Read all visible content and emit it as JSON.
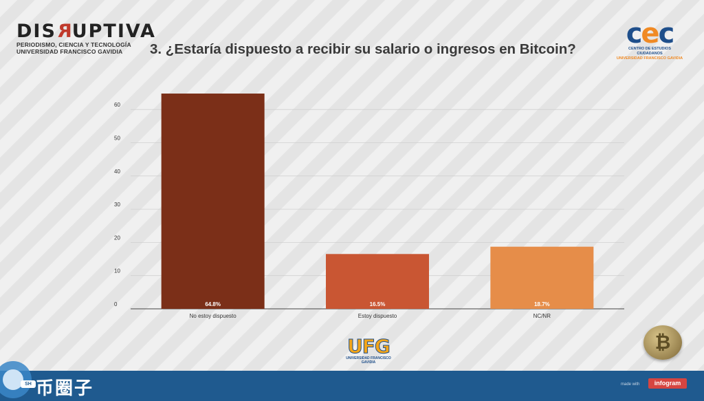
{
  "header": {
    "logo_left": {
      "word_a": "DIS",
      "word_r": "R",
      "word_b": "UPTIVA",
      "line1": "PERIODISMO, CIENCIA Y TECNOLOGÍA",
      "line2": "UNIVERSIDAD FRANCISCO GAVIDIA"
    },
    "title": "3. ¿Estaría dispuesto a recibir su salario o ingresos en Bitcoin?",
    "logo_right": {
      "mark_a": "c",
      "mark_b": "e",
      "mark_c": "c",
      "line1": "CENTRO DE ESTUDIOS CIUDADANOS",
      "line2": "UNIVERSIDAD FRANCISCO GAVIDIA"
    }
  },
  "chart_data": {
    "type": "bar",
    "title": "3. ¿Estaría dispuesto a recibir su salario o ingresos en Bitcoin?",
    "categories": [
      "No estoy dispuesto",
      "Estoy dispuesto",
      "NC/NR"
    ],
    "values": [
      64.8,
      16.5,
      18.7
    ],
    "data_labels": [
      "64.8%",
      "16.5%",
      "18.7%"
    ],
    "colors": [
      "#7b2f18",
      "#c95633",
      "#e68d49"
    ],
    "yticks": [
      0,
      10,
      20,
      30,
      40,
      50,
      60
    ],
    "ylim": [
      0,
      60
    ],
    "xlabel": "",
    "ylabel": "",
    "grid": true
  },
  "ufg": {
    "word": "UFG",
    "sub": "UNIVERSIDAD FRANCISCO GAVIDIA"
  },
  "footer": {
    "brand": "币圈子",
    "badge": "SH",
    "made_with": "made with",
    "infogram": "infogram"
  },
  "coin": {
    "symbol": "₿"
  }
}
